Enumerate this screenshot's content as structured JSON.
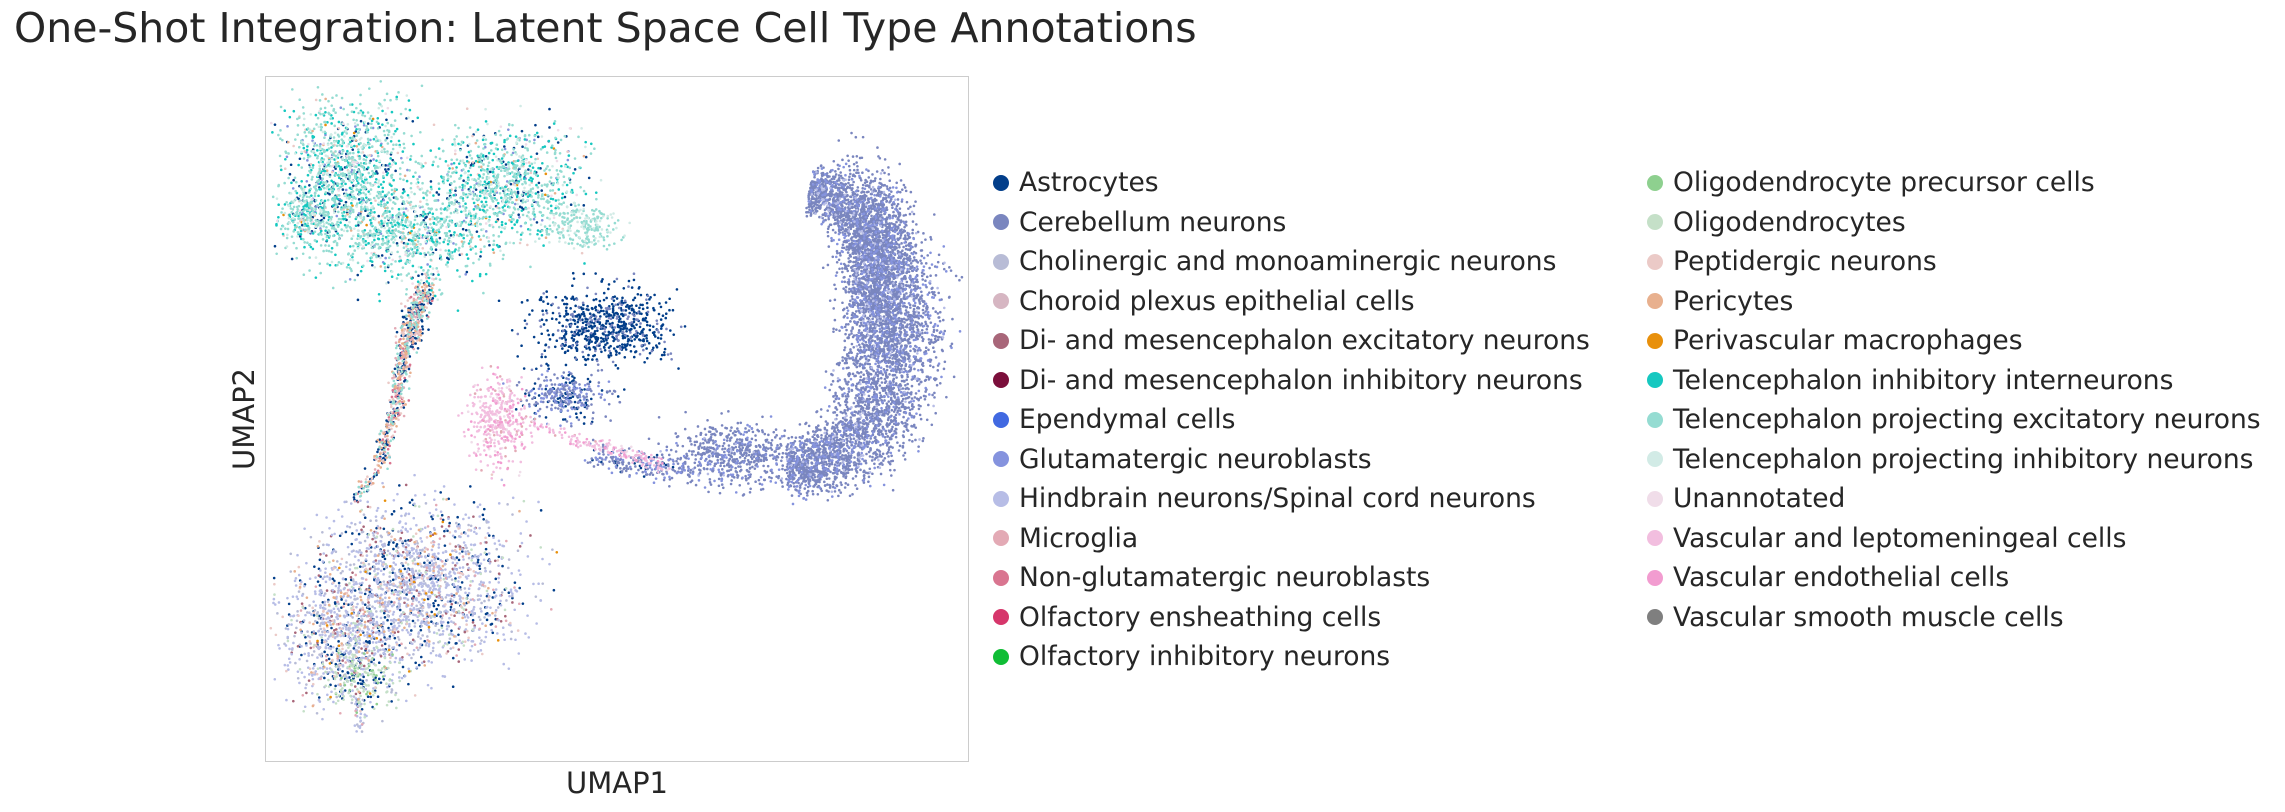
{
  "chart_data": {
    "type": "scatter",
    "title": "One-Shot Integration: Latent Space Cell Type Annotations",
    "xlabel": "UMAP1",
    "ylabel": "UMAP2",
    "show_ticks": false,
    "grid": false,
    "legend_position": "right, two columns, outside plot",
    "series": [
      {
        "name": "Astrocytes",
        "color": "#023e8a"
      },
      {
        "name": "Cerebellum neurons",
        "color": "#7a86bf"
      },
      {
        "name": "Cholinergic and monoaminergic neurons",
        "color": "#b8bcd6"
      },
      {
        "name": "Choroid plexus epithelial cells",
        "color": "#d6b6c2"
      },
      {
        "name": "Di- and mesencephalon excitatory neurons",
        "color": "#a86679"
      },
      {
        "name": "Di- and mesencephalon inhibitory neurons",
        "color": "#7b0f3b"
      },
      {
        "name": "Ependymal cells",
        "color": "#4169e1"
      },
      {
        "name": "Glutamatergic neuroblasts",
        "color": "#8593de"
      },
      {
        "name": "Hindbrain neurons/Spinal cord neurons",
        "color": "#b7bde6"
      },
      {
        "name": "Microglia",
        "color": "#e3aab5"
      },
      {
        "name": "Non-glutamatergic neuroblasts",
        "color": "#d97590"
      },
      {
        "name": "Olfactory ensheathing cells",
        "color": "#d6366b"
      },
      {
        "name": "Olfactory inhibitory neurons",
        "color": "#10bd35"
      },
      {
        "name": "Oligodendrocyte precursor cells",
        "color": "#8ed08f"
      },
      {
        "name": "Oligodendrocytes",
        "color": "#c5e0c8"
      },
      {
        "name": "Peptidergic neurons",
        "color": "#ebcac7"
      },
      {
        "name": "Pericytes",
        "color": "#e8b08e"
      },
      {
        "name": "Perivascular macrophages",
        "color": "#e8900c"
      },
      {
        "name": "Telencephalon inhibitory interneurons",
        "color": "#16c8c0"
      },
      {
        "name": "Telencephalon projecting excitatory neurons",
        "color": "#95dcd2"
      },
      {
        "name": "Telencephalon projecting inhibitory neurons",
        "color": "#d2ebe6"
      },
      {
        "name": "Unannotated",
        "color": "#f0dde9"
      },
      {
        "name": "Vascular and leptomeningeal cells",
        "color": "#f2bedf"
      },
      {
        "name": "Vascular endothelial cells",
        "color": "#f29cd0"
      },
      {
        "name": "Vascular smooth muscle cells",
        "color": "#7f7f7f"
      }
    ]
  }
}
